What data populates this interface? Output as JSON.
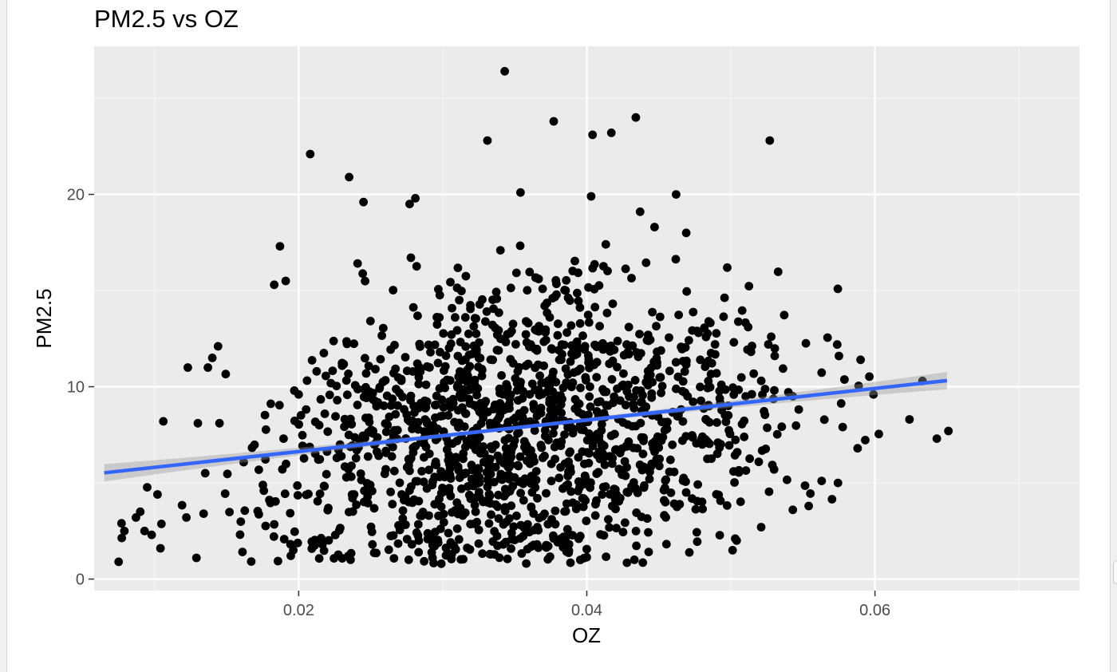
{
  "chart_data": {
    "type": "scatter",
    "title": "PM2.5 vs OZ",
    "xlabel": "OZ",
    "ylabel": "PM2.5",
    "xlim": [
      0.0058,
      0.0742
    ],
    "ylim": [
      -0.6,
      27.7
    ],
    "x_ticks": [
      0.02,
      0.04,
      0.06
    ],
    "x_tick_labels": [
      "0.02",
      "0.04",
      "0.06"
    ],
    "y_ticks": [
      0,
      10,
      20
    ],
    "y_tick_labels": [
      "0",
      "10",
      "20"
    ],
    "grid": true,
    "legend": "none",
    "point_count_approx": 1500,
    "points_seed": 20240611,
    "outlier_points": [
      {
        "x": 0.0343,
        "y": 26.4
      },
      {
        "x": 0.0377,
        "y": 23.8
      },
      {
        "x": 0.0404,
        "y": 23.1
      },
      {
        "x": 0.0417,
        "y": 23.2
      },
      {
        "x": 0.0434,
        "y": 24.0
      },
      {
        "x": 0.0331,
        "y": 22.8
      },
      {
        "x": 0.0527,
        "y": 22.8
      },
      {
        "x": 0.0208,
        "y": 22.1
      },
      {
        "x": 0.0235,
        "y": 20.9
      },
      {
        "x": 0.0245,
        "y": 19.6
      },
      {
        "x": 0.0281,
        "y": 19.8
      },
      {
        "x": 0.0277,
        "y": 19.5
      },
      {
        "x": 0.0354,
        "y": 20.1
      },
      {
        "x": 0.0403,
        "y": 19.9
      },
      {
        "x": 0.0462,
        "y": 20.0
      },
      {
        "x": 0.0187,
        "y": 17.3
      },
      {
        "x": 0.0183,
        "y": 15.3
      },
      {
        "x": 0.0191,
        "y": 15.5
      },
      {
        "x": 0.0469,
        "y": 18.0
      },
      {
        "x": 0.0447,
        "y": 18.3
      },
      {
        "x": 0.0437,
        "y": 19.1
      },
      {
        "x": 0.0123,
        "y": 11.0
      },
      {
        "x": 0.014,
        "y": 11.5
      },
      {
        "x": 0.0144,
        "y": 12.1
      },
      {
        "x": 0.0137,
        "y": 11.0
      },
      {
        "x": 0.0106,
        "y": 8.2
      },
      {
        "x": 0.013,
        "y": 8.1
      },
      {
        "x": 0.0145,
        "y": 8.1
      },
      {
        "x": 0.0102,
        "y": 4.4
      },
      {
        "x": 0.0075,
        "y": 0.9
      },
      {
        "x": 0.0077,
        "y": 2.9
      },
      {
        "x": 0.0079,
        "y": 2.5
      },
      {
        "x": 0.0087,
        "y": 3.2
      },
      {
        "x": 0.009,
        "y": 3.5
      },
      {
        "x": 0.0093,
        "y": 2.5
      },
      {
        "x": 0.0104,
        "y": 1.6
      },
      {
        "x": 0.0122,
        "y": 3.2
      },
      {
        "x": 0.0129,
        "y": 1.1
      },
      {
        "x": 0.0134,
        "y": 3.4
      },
      {
        "x": 0.0299,
        "y": 0.8
      },
      {
        "x": 0.0433,
        "y": 1.0
      },
      {
        "x": 0.0236,
        "y": 1.0
      },
      {
        "x": 0.059,
        "y": 11.4
      },
      {
        "x": 0.0624,
        "y": 8.3
      },
      {
        "x": 0.0633,
        "y": 10.3
      },
      {
        "x": 0.0643,
        "y": 7.3
      },
      {
        "x": 0.0651,
        "y": 7.7
      },
      {
        "x": 0.0599,
        "y": 9.6
      },
      {
        "x": 0.0588,
        "y": 6.8
      },
      {
        "x": 0.0575,
        "y": 11.6
      },
      {
        "x": 0.0563,
        "y": 5.1
      },
      {
        "x": 0.0554,
        "y": 3.8
      },
      {
        "x": 0.053,
        "y": 5.7
      },
      {
        "x": 0.0543,
        "y": 3.6
      },
      {
        "x": 0.0521,
        "y": 2.7
      },
      {
        "x": 0.0503,
        "y": 2.1
      },
      {
        "x": 0.0528,
        "y": 12.6
      },
      {
        "x": 0.0512,
        "y": 13.1
      },
      {
        "x": 0.0489,
        "y": 12.2
      },
      {
        "x": 0.0504,
        "y": 2.0
      }
    ],
    "series": [
      {
        "kind": "regression",
        "slope": 82.0,
        "intercept": 4.99,
        "x_range": [
          0.0065,
          0.065
        ],
        "ci_halfwidth_ends": 0.45,
        "ci_halfwidth_center": 0.1
      }
    ]
  },
  "colors": {
    "panel": "#ebebeb",
    "grid_major": "#ffffff",
    "grid_minor": "#f5f5f5",
    "point": "#000000",
    "line": "#3366ff",
    "ribbon": "#999999",
    "axis_text": "#4d4d4d",
    "title_text": "#000000",
    "tick": "#333333"
  }
}
